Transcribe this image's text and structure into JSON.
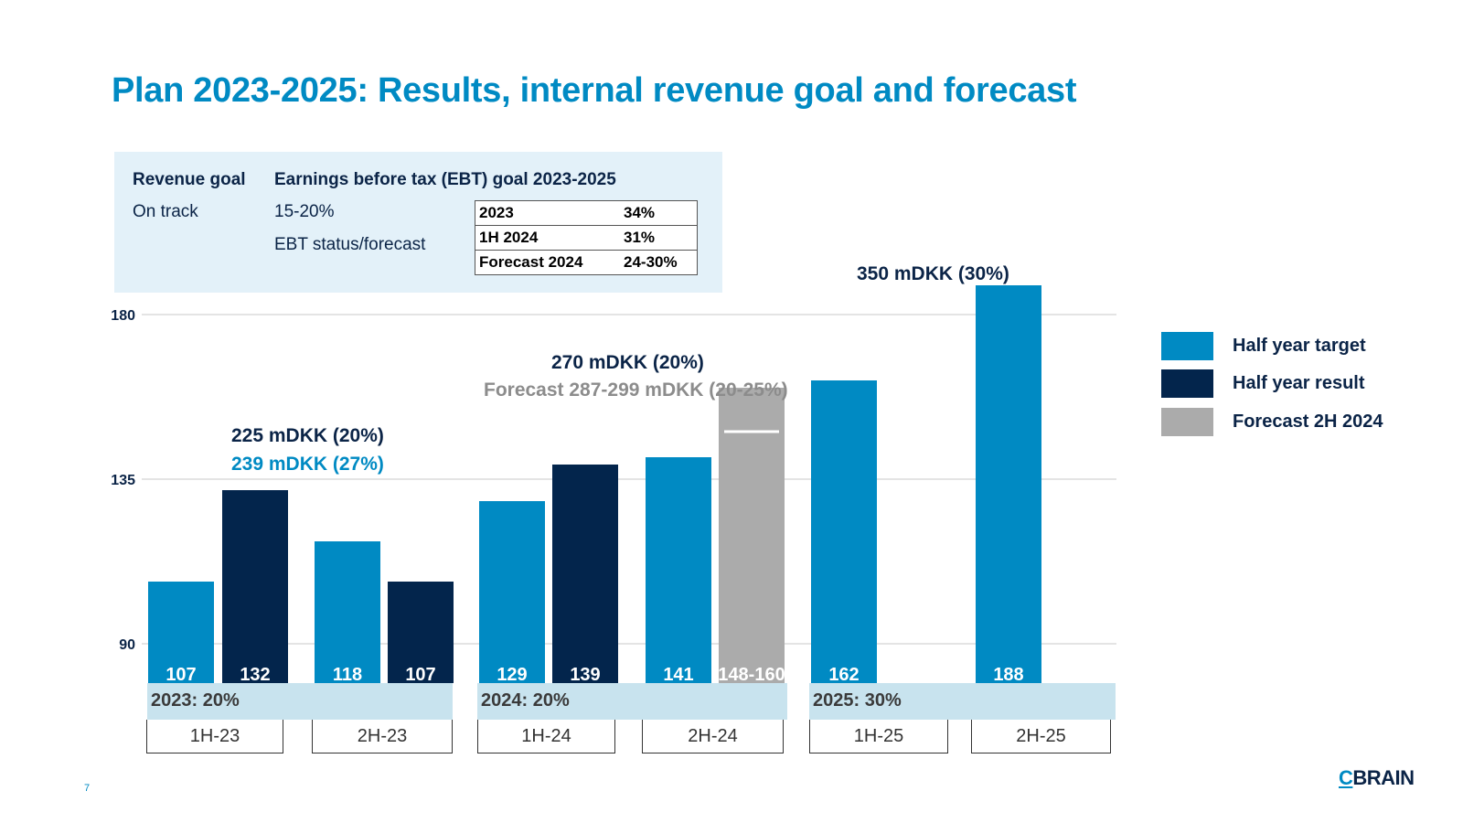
{
  "title": "Plan 2023-2025: Results, internal revenue goal and forecast",
  "goal_box": {
    "revenue_goal_label": "Revenue goal",
    "revenue_goal_status": "On track",
    "ebt_goal_label": "Earnings before tax (EBT) goal 2023-2025",
    "ebt_goal_value": "15-20%",
    "ebt_status_label": "EBT status/forecast",
    "ebt_rows": [
      {
        "period": "2023",
        "value": "34%"
      },
      {
        "period": "1H 2024",
        "value": "31%"
      },
      {
        "period": "Forecast 2024",
        "value": "24-30%"
      }
    ]
  },
  "annotations": {
    "y2023_target": "225 mDKK (20%)",
    "y2023_result": "239 mDKK (27%)",
    "y2024_target": "270 mDKK (20%)",
    "y2024_forecast": "Forecast 287-299 mDKK (20-25%)",
    "y2025_target": "350 mDKK (30%)"
  },
  "year_bands": [
    "2023: 20%",
    "2024: 20%",
    "2025: 30%"
  ],
  "period_labels": [
    "1H-23",
    "2H-23",
    "1H-24",
    "2H-24",
    "1H-25",
    "2H-25"
  ],
  "legend": [
    {
      "label": "Half year target",
      "color": "#008AC3"
    },
    {
      "label": "Half year result",
      "color": "#03254C"
    },
    {
      "label": "Forecast 2H 2024",
      "color": "#ABABAB"
    }
  ],
  "page_number": "7",
  "logo": {
    "c": "C",
    "rest": "BRAIN"
  },
  "chart_data": {
    "type": "bar",
    "categories": [
      "1H-23",
      "2H-23",
      "1H-24",
      "2H-24",
      "1H-25",
      "2H-25"
    ],
    "yticks": [
      90,
      135,
      180
    ],
    "ylim": [
      66,
      194
    ],
    "series": [
      {
        "name": "Half year target",
        "color": "#008AC3",
        "values": [
          107,
          118,
          129,
          141,
          162,
          188
        ],
        "labels": [
          "107",
          "118",
          "129",
          "141",
          "162",
          "188"
        ]
      },
      {
        "name": "Half year result",
        "color": "#03254C",
        "values": [
          132,
          107,
          139,
          null,
          null,
          null
        ],
        "labels": [
          "132",
          "107",
          "139",
          "",
          "",
          ""
        ]
      },
      {
        "name": "Forecast 2H 2024",
        "color": "#ABABAB",
        "values": [
          null,
          null,
          null,
          160,
          null,
          null
        ],
        "range": [
          148,
          160
        ],
        "labels": [
          "",
          "",
          "",
          "148-160",
          "",
          ""
        ]
      }
    ]
  }
}
